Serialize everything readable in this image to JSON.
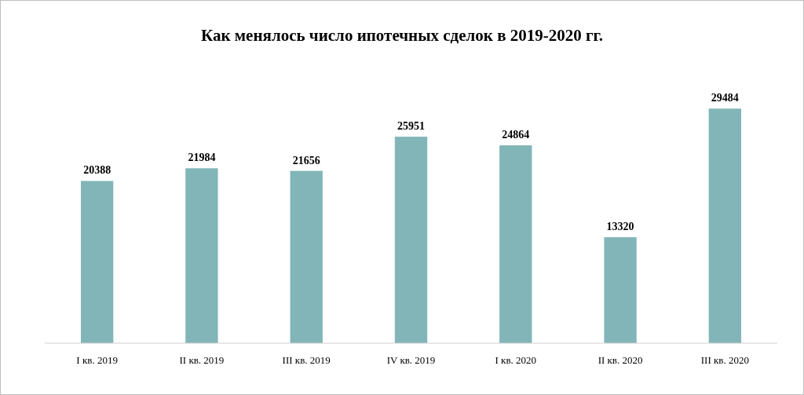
{
  "chart_data": {
    "type": "bar",
    "title": "Как менялось число ипотечных сделок в 2019-2020 гг.",
    "categories": [
      "I кв. 2019",
      "II кв. 2019",
      "III кв. 2019",
      "IV кв. 2019",
      "I кв. 2020",
      "II кв. 2020",
      "III кв. 2020"
    ],
    "values": [
      20388,
      21984,
      21656,
      25951,
      24864,
      13320,
      29484
    ],
    "color": "#82b5b8",
    "data_labels": true
  }
}
